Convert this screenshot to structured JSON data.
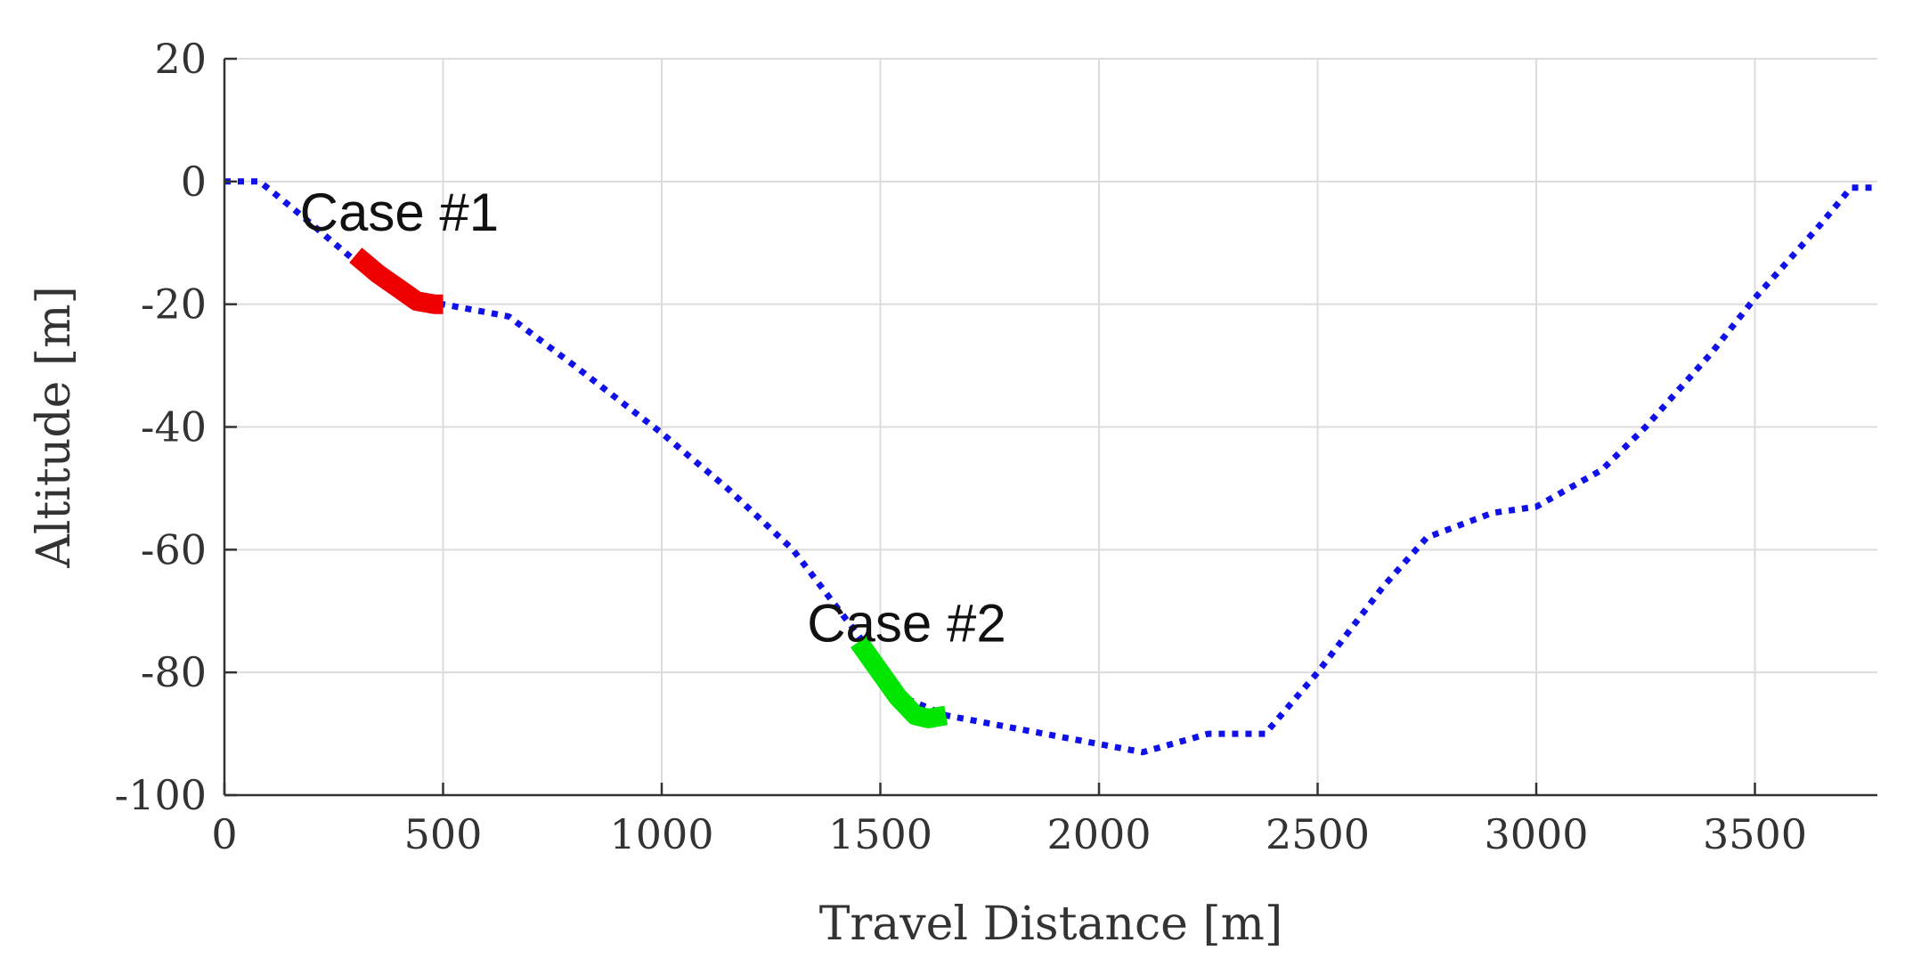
{
  "chart_data": {
    "type": "line",
    "title": "",
    "xlabel": "Travel Distance [m]",
    "ylabel": "Altitude [m]",
    "xlim": [
      0,
      3780
    ],
    "ylim": [
      -100,
      20
    ],
    "xticks": [
      0,
      500,
      1000,
      1500,
      2000,
      2500,
      3000,
      3500
    ],
    "yticks": [
      20,
      0,
      -20,
      -40,
      -60,
      -80,
      -100
    ],
    "xtick_labels": [
      "0",
      "500",
      "1000",
      "1500",
      "2000",
      "2500",
      "3000",
      "3500"
    ],
    "ytick_labels": [
      "20",
      "0",
      "-20",
      "-40",
      "-60",
      "-80",
      "-100"
    ],
    "grid": true,
    "legend": "none",
    "series": [
      {
        "style": "dotted",
        "color": "#1010e8",
        "x": [
          0,
          80,
          150,
          300,
          400,
          450,
          500,
          650,
          800,
          1000,
          1150,
          1300,
          1450,
          1550,
          1650,
          1800,
          1950,
          2100,
          2250,
          2380,
          2500,
          2650,
          2750,
          2900,
          3000,
          3150,
          3250,
          3400,
          3500,
          3650,
          3720,
          3780
        ],
        "y": [
          0,
          0,
          -4,
          -13,
          -17,
          -19,
          -20,
          -22,
          -30,
          -41,
          -50,
          -60,
          -74,
          -84,
          -87,
          -89,
          -91,
          -93,
          -90,
          -90,
          -80,
          -66,
          -58,
          -54,
          -53,
          -47,
          -40,
          -28,
          -19,
          -7,
          -1,
          -1
        ]
      },
      {
        "style": "solid",
        "color": "#ee0000",
        "x": [
          300,
          350,
          400,
          440,
          480,
          500
        ],
        "y": [
          -12,
          -15,
          -17.5,
          -19.5,
          -20,
          -20
        ]
      },
      {
        "style": "solid",
        "color": "#00e600",
        "x": [
          1450,
          1500,
          1540,
          1580,
          1610,
          1650
        ],
        "y": [
          -75,
          -80,
          -84,
          -87,
          -87.5,
          -87
        ]
      }
    ],
    "annotations": [
      {
        "text": "Case #1",
        "x": 400,
        "y": -8
      },
      {
        "text": "Case #2",
        "x": 1560,
        "y": -75
      }
    ]
  }
}
